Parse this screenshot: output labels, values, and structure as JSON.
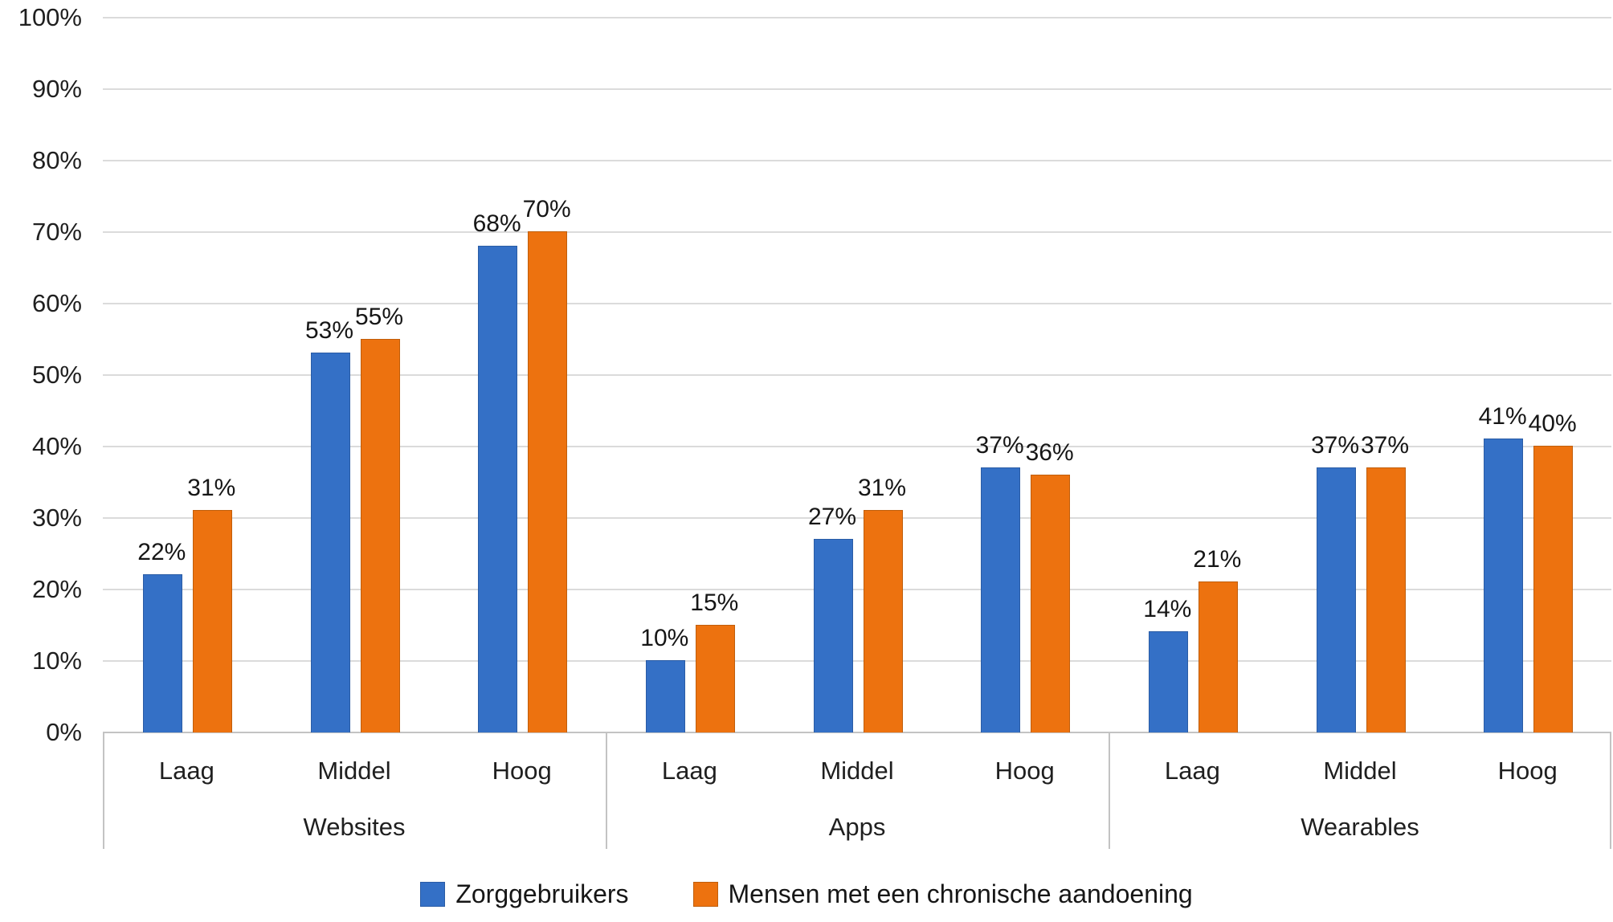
{
  "chart_data": {
    "type": "bar",
    "title": "",
    "groups": [
      {
        "label": "Websites",
        "categories": [
          "Laag",
          "Middel",
          "Hoog"
        ]
      },
      {
        "label": "Apps",
        "categories": [
          "Laag",
          "Middel",
          "Hoog"
        ]
      },
      {
        "label": "Wearables",
        "categories": [
          "Laag",
          "Middel",
          "Hoog"
        ]
      }
    ],
    "series": [
      {
        "name": "Zorggebruikers",
        "color": "#3470c6",
        "values": [
          [
            22,
            53,
            68
          ],
          [
            10,
            27,
            37
          ],
          [
            14,
            37,
            41
          ]
        ]
      },
      {
        "name": "Mensen met een chronische aandoening",
        "color": "#ed720f",
        "values": [
          [
            31,
            55,
            70
          ],
          [
            15,
            31,
            36
          ],
          [
            21,
            37,
            40
          ]
        ]
      }
    ],
    "data_label_suffix": "%",
    "y_axis": {
      "min": 0,
      "max": 100,
      "step": 10,
      "ticks": [
        "0%",
        "10%",
        "20%",
        "30%",
        "40%",
        "50%",
        "60%",
        "70%",
        "80%",
        "90%",
        "100%"
      ]
    },
    "grid": true,
    "legend_position": "bottom"
  },
  "colors": {
    "series_blue": "#3470c6",
    "series_orange": "#ed720f",
    "gridline": "#dbdbdb",
    "axis_line": "#c3c3c3",
    "text": "#1f1f1f"
  }
}
